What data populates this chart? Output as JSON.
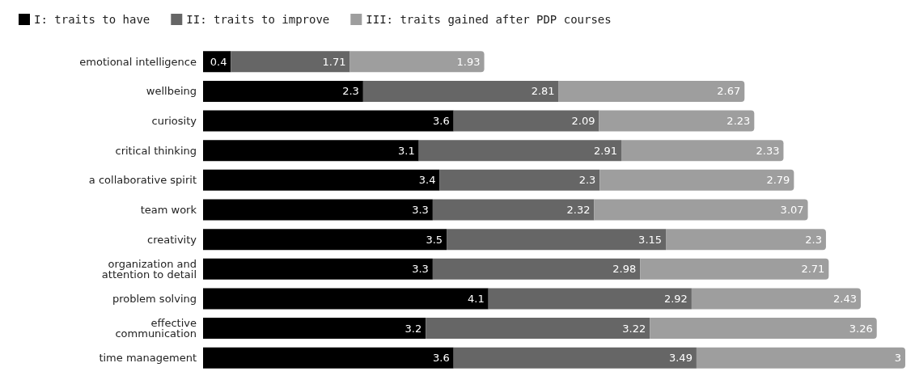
{
  "chart_data": {
    "type": "bar",
    "orientation": "horizontal",
    "stacked": true,
    "data_labels": true,
    "legend": "top",
    "categories": [
      "emotional intelligence",
      "wellbeing",
      "curiosity",
      "critical thinking",
      "a collaborative spirit",
      "team work",
      "creativity",
      "organization and\nattention to detail",
      "problem solving",
      "effective\ncommunication",
      "time management"
    ],
    "series": [
      {
        "name": "I: traits to have",
        "color": "#000000",
        "values": [
          0.4,
          2.3,
          3.6,
          3.1,
          3.4,
          3.3,
          3.5,
          3.3,
          4.1,
          3.2,
          3.6
        ]
      },
      {
        "name": "II: traits to improve",
        "color": "#666666",
        "values": [
          1.71,
          2.81,
          2.09,
          2.91,
          2.3,
          2.32,
          3.15,
          2.98,
          2.92,
          3.22,
          3.49
        ]
      },
      {
        "name": "III: traits gained after PDP courses",
        "color": "#9e9e9e",
        "values": [
          1.93,
          2.67,
          2.23,
          2.33,
          2.79,
          3.07,
          2.3,
          2.71,
          2.43,
          3.26,
          3
        ]
      }
    ]
  }
}
